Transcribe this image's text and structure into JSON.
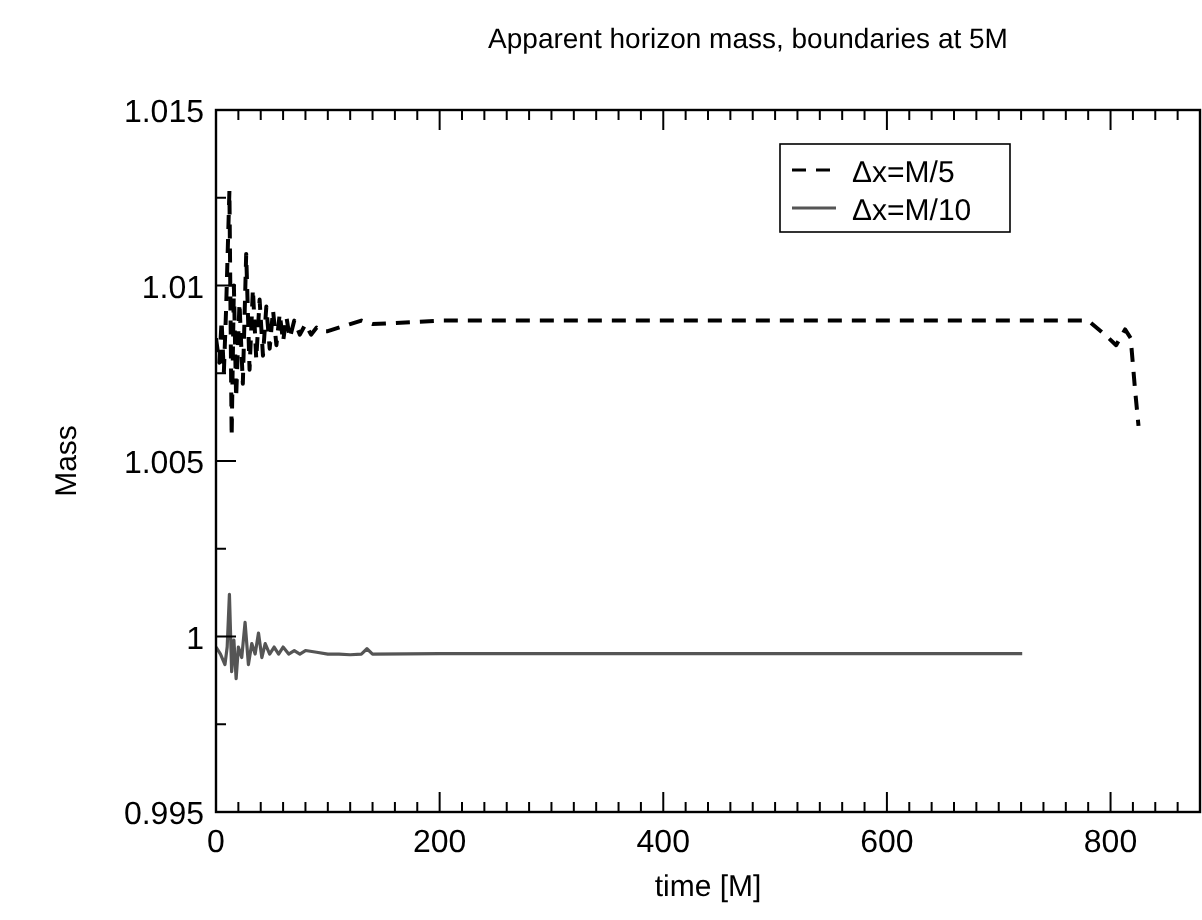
{
  "chart_data": {
    "type": "line",
    "title": "Apparent horizon mass, boundaries at 5M",
    "xlabel": "time [M]",
    "ylabel": "Mass",
    "xlim": [
      0,
      880
    ],
    "ylim": [
      0.995,
      1.015
    ],
    "xticks": [
      0,
      200,
      400,
      600,
      800
    ],
    "yticks": [
      0.995,
      1,
      1.005,
      1.01,
      1.015
    ],
    "legend": "top right",
    "grid": false,
    "series": [
      {
        "name": "Δx=M/5",
        "color": "#000000",
        "line_style": "dashed",
        "x": [
          0,
          3,
          5,
          7,
          9,
          12,
          14,
          16,
          18,
          21,
          24,
          27,
          30,
          33,
          36,
          39,
          42,
          45,
          48,
          51,
          54,
          57,
          60,
          63,
          66,
          70,
          75,
          80,
          85,
          90,
          95,
          100,
          120,
          130,
          140,
          200,
          400,
          600,
          780,
          795,
          805,
          813,
          818,
          822,
          825
        ],
        "values": [
          1.0085,
          1.0078,
          1.009,
          1.0075,
          1.0093,
          1.0127,
          1.0057,
          1.01,
          1.0068,
          1.0095,
          1.0072,
          1.0109,
          1.0076,
          1.0099,
          1.0079,
          1.0096,
          1.008,
          1.0094,
          1.0082,
          1.0093,
          1.0083,
          1.0092,
          1.0084,
          1.0091,
          1.0085,
          1.009,
          1.0086,
          1.0089,
          1.0086,
          1.0088,
          1.0087,
          1.0087,
          1.0089,
          1.009,
          1.0089,
          1.009,
          1.009,
          1.009,
          1.009,
          1.0086,
          1.0083,
          1.00875,
          1.0085,
          1.007,
          1.006
        ]
      },
      {
        "name": "Δx=M/10",
        "color": "#555555",
        "line_style": "solid",
        "x": [
          0,
          4,
          8,
          10,
          12,
          14,
          16,
          18,
          20,
          23,
          26,
          29,
          32,
          35,
          38,
          41,
          44,
          48,
          52,
          56,
          60,
          65,
          70,
          75,
          80,
          90,
          100,
          110,
          120,
          130,
          135,
          140,
          200,
          400,
          600,
          721
        ],
        "values": [
          0.9997,
          0.9995,
          0.9992,
          0.9997,
          1.0012,
          0.999,
          0.9999,
          0.9988,
          0.9997,
          0.9994,
          1.0004,
          0.9992,
          0.9998,
          0.9995,
          1.0001,
          0.9994,
          0.9998,
          0.9995,
          0.9997,
          0.9995,
          0.9997,
          0.9995,
          0.9996,
          0.9995,
          0.9996,
          0.99955,
          0.9995,
          0.9995,
          0.99948,
          0.9995,
          0.99965,
          0.9995,
          0.99951,
          0.99951,
          0.99951,
          0.99951
        ]
      }
    ]
  }
}
